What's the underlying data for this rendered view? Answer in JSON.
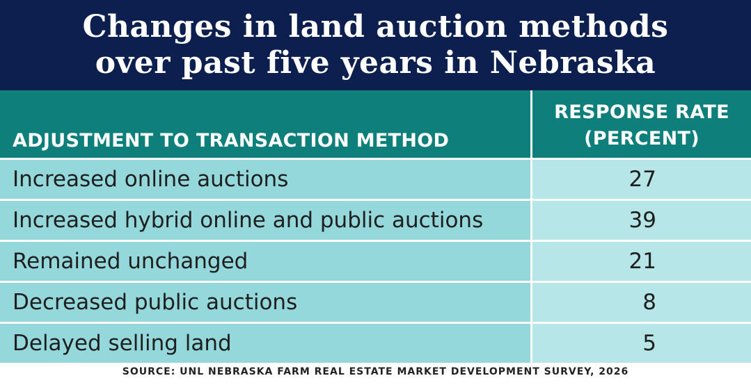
{
  "colors": {
    "title_background": "#0c1f4e",
    "header_background": "#0f7f7b",
    "label_cell": "#94d8dc",
    "value_cell": "#b7e6e8"
  },
  "title_lines": [
    "Changes in land auction methods",
    "over past five years in Nebraska"
  ],
  "chart_data": {
    "type": "table",
    "title": "Changes in land auction methods over past five years in Nebraska",
    "columns": [
      "ADJUSTMENT TO TRANSACTION METHOD",
      "RESPONSE RATE (PERCENT)"
    ],
    "header_right_lines": [
      "RESPONSE RATE",
      "(PERCENT)"
    ],
    "rows": [
      {
        "label": "Increased online auctions",
        "value": 27
      },
      {
        "label": "Increased hybrid online and public auctions",
        "value": 39
      },
      {
        "label": "Remained unchanged",
        "value": 21
      },
      {
        "label": "Decreased public auctions",
        "value": 8
      },
      {
        "label": "Delayed selling land",
        "value": 5
      }
    ],
    "source": "SOURCE: UNL NEBRASKA FARM REAL ESTATE MARKET DEVELOPMENT SURVEY, 2026"
  }
}
